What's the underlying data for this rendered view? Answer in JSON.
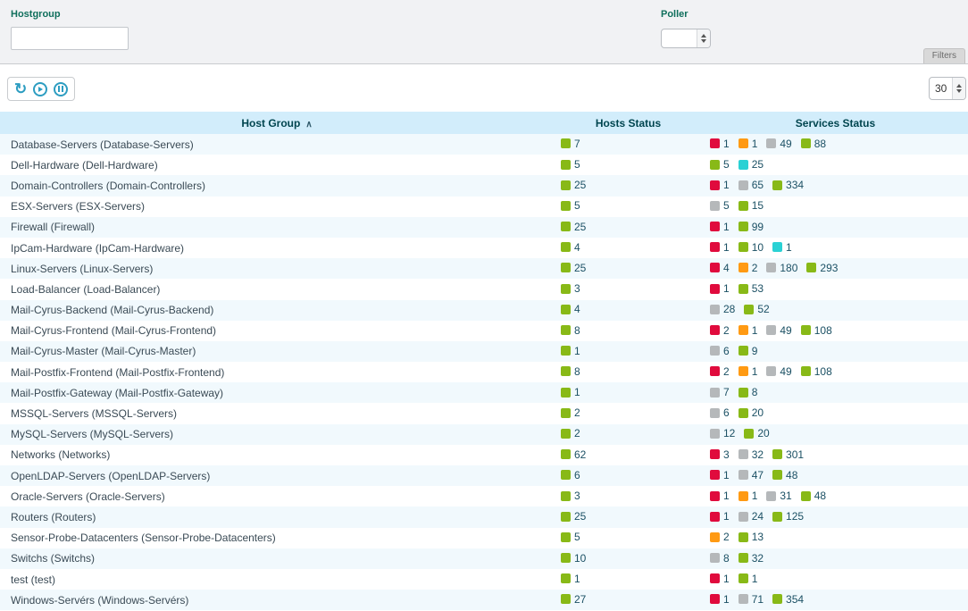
{
  "filters": {
    "hostgroup": {
      "label": "Hostgroup",
      "value": ""
    },
    "poller": {
      "label": "Poller",
      "value": ""
    },
    "toggle_label": "Filters"
  },
  "toolbar": {
    "page_size": "30"
  },
  "icons": {
    "refresh": "↻",
    "sort_asc": "∧"
  },
  "colors": {
    "ok": "#88b917",
    "critical": "#e00b3d",
    "warning": "#ff9a13",
    "unknown": "#b5b8ba",
    "pending": "#2ad1d4"
  },
  "table": {
    "columns": {
      "hostgroup": "Host Group",
      "hosts": "Hosts Status",
      "services": "Services Status"
    },
    "rows": [
      {
        "name": "Database-Servers (Database-Servers)",
        "hosts": [
          {
            "status": "ok",
            "count": 7
          }
        ],
        "services": [
          {
            "status": "critical",
            "count": 1
          },
          {
            "status": "warning",
            "count": 1
          },
          {
            "status": "unknown",
            "count": 49
          },
          {
            "status": "ok",
            "count": 88
          }
        ]
      },
      {
        "name": "Dell-Hardware (Dell-Hardware)",
        "hosts": [
          {
            "status": "ok",
            "count": 5
          }
        ],
        "services": [
          {
            "status": "ok",
            "count": 5
          },
          {
            "status": "pending",
            "count": 25
          }
        ]
      },
      {
        "name": "Domain-Controllers (Domain-Controllers)",
        "hosts": [
          {
            "status": "ok",
            "count": 25
          }
        ],
        "services": [
          {
            "status": "critical",
            "count": 1
          },
          {
            "status": "unknown",
            "count": 65
          },
          {
            "status": "ok",
            "count": 334
          }
        ]
      },
      {
        "name": "ESX-Servers (ESX-Servers)",
        "hosts": [
          {
            "status": "ok",
            "count": 5
          }
        ],
        "services": [
          {
            "status": "unknown",
            "count": 5
          },
          {
            "status": "ok",
            "count": 15
          }
        ]
      },
      {
        "name": "Firewall (Firewall)",
        "hosts": [
          {
            "status": "ok",
            "count": 25
          }
        ],
        "services": [
          {
            "status": "critical",
            "count": 1
          },
          {
            "status": "ok",
            "count": 99
          }
        ]
      },
      {
        "name": "IpCam-Hardware (IpCam-Hardware)",
        "hosts": [
          {
            "status": "ok",
            "count": 4
          }
        ],
        "services": [
          {
            "status": "critical",
            "count": 1
          },
          {
            "status": "ok",
            "count": 10
          },
          {
            "status": "pending",
            "count": 1
          }
        ]
      },
      {
        "name": "Linux-Servers (Linux-Servers)",
        "hosts": [
          {
            "status": "ok",
            "count": 25
          }
        ],
        "services": [
          {
            "status": "critical",
            "count": 4
          },
          {
            "status": "warning",
            "count": 2
          },
          {
            "status": "unknown",
            "count": 180
          },
          {
            "status": "ok",
            "count": 293
          }
        ]
      },
      {
        "name": "Load-Balancer (Load-Balancer)",
        "hosts": [
          {
            "status": "ok",
            "count": 3
          }
        ],
        "services": [
          {
            "status": "critical",
            "count": 1
          },
          {
            "status": "ok",
            "count": 53
          }
        ]
      },
      {
        "name": "Mail-Cyrus-Backend (Mail-Cyrus-Backend)",
        "hosts": [
          {
            "status": "ok",
            "count": 4
          }
        ],
        "services": [
          {
            "status": "unknown",
            "count": 28
          },
          {
            "status": "ok",
            "count": 52
          }
        ]
      },
      {
        "name": "Mail-Cyrus-Frontend (Mail-Cyrus-Frontend)",
        "hosts": [
          {
            "status": "ok",
            "count": 8
          }
        ],
        "services": [
          {
            "status": "critical",
            "count": 2
          },
          {
            "status": "warning",
            "count": 1
          },
          {
            "status": "unknown",
            "count": 49
          },
          {
            "status": "ok",
            "count": 108
          }
        ]
      },
      {
        "name": "Mail-Cyrus-Master (Mail-Cyrus-Master)",
        "hosts": [
          {
            "status": "ok",
            "count": 1
          }
        ],
        "services": [
          {
            "status": "unknown",
            "count": 6
          },
          {
            "status": "ok",
            "count": 9
          }
        ]
      },
      {
        "name": "Mail-Postfix-Frontend (Mail-Postfix-Frontend)",
        "hosts": [
          {
            "status": "ok",
            "count": 8
          }
        ],
        "services": [
          {
            "status": "critical",
            "count": 2
          },
          {
            "status": "warning",
            "count": 1
          },
          {
            "status": "unknown",
            "count": 49
          },
          {
            "status": "ok",
            "count": 108
          }
        ]
      },
      {
        "name": "Mail-Postfix-Gateway (Mail-Postfix-Gateway)",
        "hosts": [
          {
            "status": "ok",
            "count": 1
          }
        ],
        "services": [
          {
            "status": "unknown",
            "count": 7
          },
          {
            "status": "ok",
            "count": 8
          }
        ]
      },
      {
        "name": "MSSQL-Servers (MSSQL-Servers)",
        "hosts": [
          {
            "status": "ok",
            "count": 2
          }
        ],
        "services": [
          {
            "status": "unknown",
            "count": 6
          },
          {
            "status": "ok",
            "count": 20
          }
        ]
      },
      {
        "name": "MySQL-Servers (MySQL-Servers)",
        "hosts": [
          {
            "status": "ok",
            "count": 2
          }
        ],
        "services": [
          {
            "status": "unknown",
            "count": 12
          },
          {
            "status": "ok",
            "count": 20
          }
        ]
      },
      {
        "name": "Networks (Networks)",
        "hosts": [
          {
            "status": "ok",
            "count": 62
          }
        ],
        "services": [
          {
            "status": "critical",
            "count": 3
          },
          {
            "status": "unknown",
            "count": 32
          },
          {
            "status": "ok",
            "count": 301
          }
        ]
      },
      {
        "name": "OpenLDAP-Servers (OpenLDAP-Servers)",
        "hosts": [
          {
            "status": "ok",
            "count": 6
          }
        ],
        "services": [
          {
            "status": "critical",
            "count": 1
          },
          {
            "status": "unknown",
            "count": 47
          },
          {
            "status": "ok",
            "count": 48
          }
        ]
      },
      {
        "name": "Oracle-Servers (Oracle-Servers)",
        "hosts": [
          {
            "status": "ok",
            "count": 3
          }
        ],
        "services": [
          {
            "status": "critical",
            "count": 1
          },
          {
            "status": "warning",
            "count": 1
          },
          {
            "status": "unknown",
            "count": 31
          },
          {
            "status": "ok",
            "count": 48
          }
        ]
      },
      {
        "name": "Routers (Routers)",
        "hosts": [
          {
            "status": "ok",
            "count": 25
          }
        ],
        "services": [
          {
            "status": "critical",
            "count": 1
          },
          {
            "status": "unknown",
            "count": 24
          },
          {
            "status": "ok",
            "count": 125
          }
        ]
      },
      {
        "name": "Sensor-Probe-Datacenters (Sensor-Probe-Datacenters)",
        "hosts": [
          {
            "status": "ok",
            "count": 5
          }
        ],
        "services": [
          {
            "status": "warning",
            "count": 2
          },
          {
            "status": "ok",
            "count": 13
          }
        ]
      },
      {
        "name": "Switchs (Switchs)",
        "hosts": [
          {
            "status": "ok",
            "count": 10
          }
        ],
        "services": [
          {
            "status": "unknown",
            "count": 8
          },
          {
            "status": "ok",
            "count": 32
          }
        ]
      },
      {
        "name": "test (test)",
        "hosts": [
          {
            "status": "ok",
            "count": 1
          }
        ],
        "services": [
          {
            "status": "critical",
            "count": 1
          },
          {
            "status": "ok",
            "count": 1
          }
        ]
      },
      {
        "name": "Windows-Servérs (Windows-Servérs)",
        "hosts": [
          {
            "status": "ok",
            "count": 27
          }
        ],
        "services": [
          {
            "status": "critical",
            "count": 1
          },
          {
            "status": "unknown",
            "count": 71
          },
          {
            "status": "ok",
            "count": 354
          }
        ]
      }
    ]
  }
}
